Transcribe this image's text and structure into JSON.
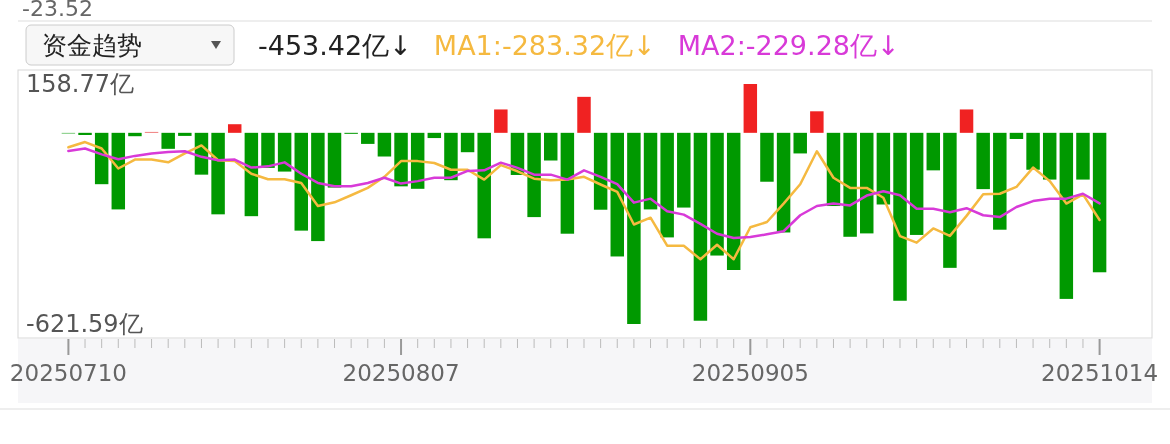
{
  "chart_data": {
    "type": "bar",
    "categories": [
      "20250710",
      null,
      null,
      null,
      null,
      null,
      null,
      null,
      null,
      null,
      null,
      null,
      null,
      null,
      null,
      null,
      null,
      null,
      null,
      null,
      "20250807",
      null,
      null,
      null,
      null,
      null,
      null,
      null,
      null,
      null,
      null,
      null,
      null,
      null,
      null,
      null,
      null,
      null,
      null,
      null,
      null,
      "20250905",
      null,
      null,
      null,
      null,
      null,
      null,
      null,
      null,
      null,
      null,
      null,
      null,
      null,
      null,
      null,
      null,
      null,
      null,
      null,
      null,
      "20251014"
    ],
    "series": [
      {
        "colors": [
          "#7fcc7f",
          "#009900",
          "#009900",
          "#009900",
          "#009900",
          "#f08080",
          "#009900",
          "#009900",
          "#009900",
          "#009900",
          "#f02222",
          "#009900",
          "#009900",
          "#009900",
          "#009900",
          "#009900",
          "#009900",
          "#009900",
          "#009900",
          "#009900",
          "#009900",
          "#009900",
          "#009900",
          "#009900",
          "#009900",
          "#009900",
          "#f02222",
          "#009900",
          "#009900",
          "#009900",
          "#009900",
          "#f02222",
          "#009900",
          "#009900",
          "#009900",
          "#009900",
          "#009900",
          "#009900",
          "#009900",
          "#009900",
          "#009900",
          "#f02222",
          "#009900",
          "#009900",
          "#009900",
          "#f02222",
          "#009900",
          "#009900",
          "#009900",
          "#009900",
          "#009900",
          "#009900",
          "#009900",
          "#009900",
          "#f02222",
          "#009900",
          "#009900",
          "#009900",
          "#009900",
          "#009900",
          "#009900",
          "#009900",
          "#009900"
        ],
        "values": [
          -1,
          -7,
          -167,
          -249,
          -11,
          3,
          -52,
          -10,
          -136,
          -265,
          28,
          -271,
          -114,
          -126,
          -318,
          -352,
          -178,
          0,
          -36,
          -77,
          -174,
          -182,
          -17,
          -154,
          -63,
          -343,
          76,
          -137,
          -274,
          -90,
          -328,
          117,
          -250,
          -402,
          -621.59,
          -249,
          -340,
          -243,
          -611,
          -399,
          -446,
          158.77,
          -159,
          -324,
          -67,
          70,
          -238,
          -338,
          -327,
          -233,
          -546,
          -332,
          -122,
          -439,
          76,
          -183,
          -315,
          -20,
          -120,
          -152,
          -540,
          -152,
          -453.42
        ]
      },
      {
        "type": "line",
        "name": "MA1:-283.32亿↓",
        "color": "#f5b940",
        "values": [
          -47,
          -30,
          -51,
          -116,
          -87,
          -87,
          -96,
          -67,
          -41,
          -89,
          -92,
          -133,
          -151,
          -151,
          -163,
          -238,
          -226,
          -203,
          -179,
          -143,
          -92,
          -92,
          -98,
          -120,
          -120,
          -152,
          -105,
          -125,
          -149,
          -154,
          -152,
          -143,
          -168,
          -192,
          -298,
          -276,
          -367,
          -367,
          -411,
          -364,
          -411,
          -307,
          -290,
          -230,
          -167,
          -60,
          -146,
          -179,
          -179,
          -211,
          -336,
          -357,
          -311,
          -335,
          -270,
          -200,
          -198,
          -176,
          -113,
          -157,
          -230,
          -200,
          -283.32
        ]
      },
      {
        "type": "line",
        "name": "MA2:-229.28亿↓",
        "color": "#d83ad8",
        "values": [
          -59,
          -51,
          -70,
          -86,
          -75,
          -67,
          -62,
          -60,
          -78,
          -89,
          -87,
          -113,
          -109,
          -96,
          -133,
          -163,
          -174,
          -174,
          -163,
          -146,
          -165,
          -157,
          -146,
          -146,
          -124,
          -122,
          -97,
          -114,
          -136,
          -136,
          -152,
          -122,
          -143,
          -167,
          -227,
          -214,
          -255,
          -266,
          -296,
          -328,
          -342,
          -339,
          -330,
          -320,
          -268,
          -238,
          -230,
          -236,
          -204,
          -190,
          -203,
          -247,
          -247,
          -258,
          -245,
          -268,
          -274,
          -241,
          -222,
          -214,
          -214,
          -198,
          -229.28
        ]
      }
    ],
    "ylim": [
      -621.59,
      158.77
    ],
    "yticks": [
      {
        "value": 158.77,
        "label": "158.77亿"
      },
      {
        "value": -621.59,
        "label": "-621.59亿"
      }
    ],
    "grid": false,
    "legend": "top",
    "line_style": "solid",
    "annotations": [
      "-23.52",
      "资金趋势",
      "-453.42亿↓"
    ]
  }
}
